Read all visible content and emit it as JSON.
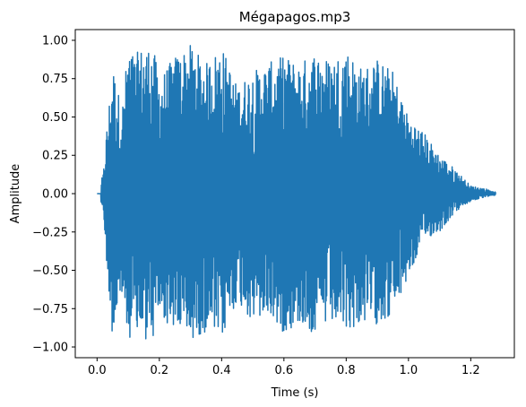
{
  "chart_data": {
    "type": "line",
    "title": "Mégapagos.mp3",
    "xlabel": "Time (s)",
    "ylabel": "Amplitude",
    "xlim": [
      -0.07,
      1.34
    ],
    "ylim": [
      -1.07,
      1.07
    ],
    "xticks": [
      0.0,
      0.2,
      0.4,
      0.6,
      0.8,
      1.0,
      1.2
    ],
    "xtick_labels": [
      "0.0",
      "0.2",
      "0.4",
      "0.6",
      "0.8",
      "1.0",
      "1.2"
    ],
    "yticks": [
      -1.0,
      -0.75,
      -0.5,
      -0.25,
      0.0,
      0.25,
      0.5,
      0.75,
      1.0
    ],
    "ytick_labels": [
      "−1.00",
      "−0.75",
      "−0.50",
      "−0.25",
      "0.00",
      "0.25",
      "0.50",
      "0.75",
      "1.00"
    ],
    "grid": false,
    "series": [
      {
        "color": "#1f77b4",
        "x": [
          0.0,
          0.02,
          0.03,
          0.05,
          0.08,
          0.1,
          0.12,
          0.15,
          0.18,
          0.2,
          0.25,
          0.3,
          0.35,
          0.4,
          0.45,
          0.5,
          0.55,
          0.6,
          0.65,
          0.7,
          0.75,
          0.8,
          0.85,
          0.9,
          0.95,
          1.0,
          1.05,
          1.1,
          1.15,
          1.2,
          1.25,
          1.28
        ],
        "envelope_max": [
          0.0,
          0.13,
          0.4,
          0.84,
          0.55,
          0.97,
          0.9,
          0.97,
          0.96,
          0.75,
          0.9,
          0.97,
          0.85,
          0.97,
          0.7,
          0.8,
          0.85,
          0.9,
          0.85,
          0.93,
          0.87,
          0.95,
          0.82,
          0.88,
          0.8,
          0.5,
          0.4,
          0.25,
          0.16,
          0.05,
          0.03,
          0.01
        ],
        "envelope_min": [
          0.0,
          -0.1,
          -0.45,
          -0.95,
          -0.7,
          -0.93,
          -0.96,
          -0.96,
          -0.96,
          -0.8,
          -0.9,
          -0.96,
          -0.9,
          -0.96,
          -0.7,
          -0.85,
          -0.8,
          -0.91,
          -0.85,
          -0.93,
          -0.85,
          -0.9,
          -0.85,
          -0.85,
          -0.8,
          -0.55,
          -0.3,
          -0.25,
          -0.12,
          -0.05,
          -0.02,
          -0.01
        ]
      }
    ]
  }
}
